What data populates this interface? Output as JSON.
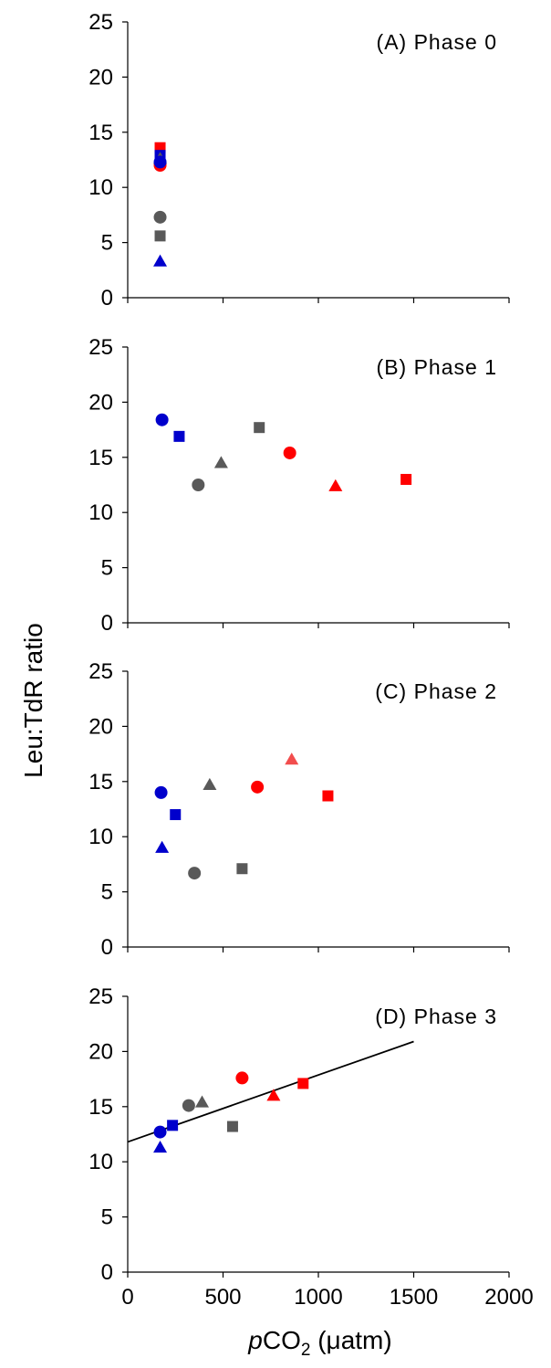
{
  "chart_data": {
    "type": "scatter",
    "ylabel": "Leu:TdR ratio",
    "xlabel_parts": [
      "p",
      "CO",
      "2",
      " (μatm)"
    ],
    "xlim": [
      0,
      2000
    ],
    "ylim": [
      0,
      25
    ],
    "xticks": [
      0,
      500,
      1000,
      1500,
      2000
    ],
    "yticks": [
      0,
      5,
      10,
      15,
      20,
      25
    ],
    "colors": {
      "blue": "#0000cc",
      "gray": "#595959",
      "red": "#ff0000",
      "lightred": "#f24d4d"
    },
    "panels": [
      {
        "title": "(A) Phase 0",
        "points": [
          {
            "x": 170,
            "y": 13.6,
            "marker": "square",
            "color": "red"
          },
          {
            "x": 170,
            "y": 12.9,
            "marker": "square",
            "color": "blue"
          },
          {
            "x": 170,
            "y": 12.6,
            "marker": "triangle",
            "color": "gray"
          },
          {
            "x": 170,
            "y": 12.0,
            "marker": "circle",
            "color": "red"
          },
          {
            "x": 170,
            "y": 12.3,
            "marker": "circle",
            "color": "blue"
          },
          {
            "x": 170,
            "y": 7.3,
            "marker": "circle",
            "color": "gray"
          },
          {
            "x": 170,
            "y": 5.6,
            "marker": "square",
            "color": "gray"
          },
          {
            "x": 170,
            "y": 3.3,
            "marker": "triangle",
            "color": "blue"
          }
        ]
      },
      {
        "title": "(B) Phase 1",
        "points": [
          {
            "x": 180,
            "y": 18.4,
            "marker": "circle",
            "color": "blue"
          },
          {
            "x": 270,
            "y": 16.9,
            "marker": "square",
            "color": "blue"
          },
          {
            "x": 370,
            "y": 12.5,
            "marker": "circle",
            "color": "gray"
          },
          {
            "x": 490,
            "y": 14.5,
            "marker": "triangle",
            "color": "gray"
          },
          {
            "x": 690,
            "y": 17.7,
            "marker": "square",
            "color": "gray"
          },
          {
            "x": 850,
            "y": 15.4,
            "marker": "circle",
            "color": "red"
          },
          {
            "x": 1090,
            "y": 12.4,
            "marker": "triangle",
            "color": "red"
          },
          {
            "x": 1460,
            "y": 13.0,
            "marker": "square",
            "color": "red"
          }
        ]
      },
      {
        "title": "(C) Phase 2",
        "points": [
          {
            "x": 175,
            "y": 14.0,
            "marker": "circle",
            "color": "blue"
          },
          {
            "x": 180,
            "y": 9.0,
            "marker": "triangle",
            "color": "blue"
          },
          {
            "x": 250,
            "y": 12.0,
            "marker": "square",
            "color": "blue"
          },
          {
            "x": 350,
            "y": 6.7,
            "marker": "circle",
            "color": "gray"
          },
          {
            "x": 430,
            "y": 14.7,
            "marker": "triangle",
            "color": "gray"
          },
          {
            "x": 600,
            "y": 7.1,
            "marker": "square",
            "color": "gray"
          },
          {
            "x": 680,
            "y": 14.5,
            "marker": "circle",
            "color": "red"
          },
          {
            "x": 860,
            "y": 17.0,
            "marker": "triangle",
            "color": "lightred"
          },
          {
            "x": 1050,
            "y": 13.7,
            "marker": "square",
            "color": "red"
          }
        ]
      },
      {
        "title": "(D) Phase 3",
        "points": [
          {
            "x": 170,
            "y": 12.7,
            "marker": "circle",
            "color": "blue"
          },
          {
            "x": 170,
            "y": 11.3,
            "marker": "triangle",
            "color": "blue"
          },
          {
            "x": 235,
            "y": 13.3,
            "marker": "square",
            "color": "blue"
          },
          {
            "x": 320,
            "y": 15.1,
            "marker": "circle",
            "color": "gray"
          },
          {
            "x": 390,
            "y": 15.4,
            "marker": "triangle",
            "color": "gray"
          },
          {
            "x": 550,
            "y": 13.2,
            "marker": "square",
            "color": "gray"
          },
          {
            "x": 600,
            "y": 17.6,
            "marker": "circle",
            "color": "red"
          },
          {
            "x": 765,
            "y": 16.0,
            "marker": "triangle",
            "color": "red"
          },
          {
            "x": 920,
            "y": 17.1,
            "marker": "square",
            "color": "red"
          }
        ],
        "trendline": {
          "x": [
            0,
            1500
          ],
          "y": [
            11.8,
            20.9
          ]
        }
      }
    ]
  }
}
